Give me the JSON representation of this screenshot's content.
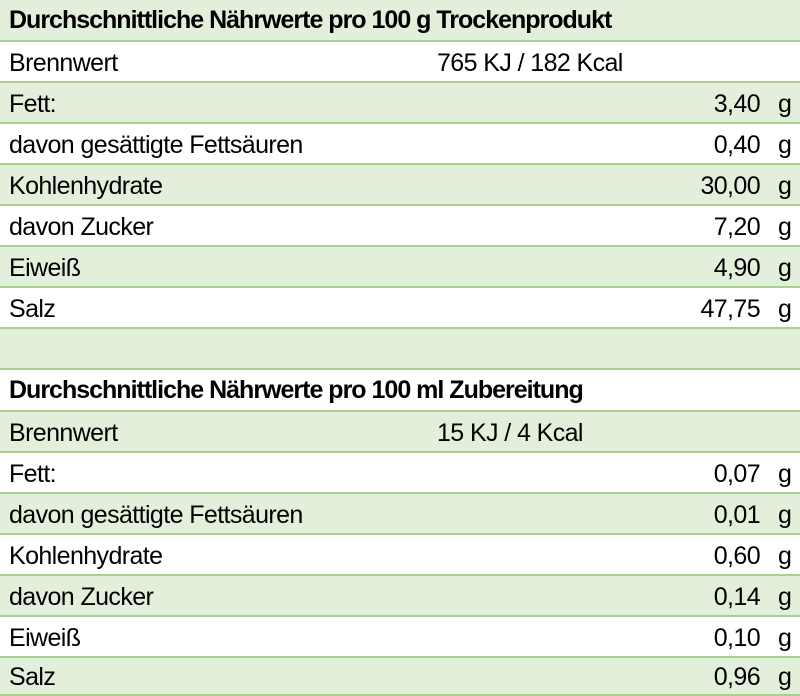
{
  "section1": {
    "title": "Durchschnittliche Nährwerte pro 100 g Trockenprodukt",
    "energy_label": "Brennwert",
    "energy_value": "765 KJ / 182 Kcal",
    "rows": [
      {
        "label": "Fett:",
        "value": "3,40",
        "unit": "g"
      },
      {
        "label": "davon gesättigte Fettsäuren",
        "value": "0,40",
        "unit": "g"
      },
      {
        "label": "Kohlenhydrate",
        "value": "30,00",
        "unit": "g"
      },
      {
        "label": "davon Zucker",
        "value": "7,20",
        "unit": "g"
      },
      {
        "label": "Eiweiß",
        "value": "4,90",
        "unit": "g"
      },
      {
        "label": "Salz",
        "value": "47,75",
        "unit": "g"
      }
    ]
  },
  "section2": {
    "title": "Durchschnittliche Nährwerte pro 100 ml Zubereitung",
    "energy_label": "Brennwert",
    "energy_value": "15 KJ / 4 Kcal",
    "rows": [
      {
        "label": "Fett:",
        "value": "0,07",
        "unit": "g"
      },
      {
        "label": "davon gesättigte Fettsäuren",
        "value": "0,01",
        "unit": "g"
      },
      {
        "label": "Kohlenhydrate",
        "value": "0,60",
        "unit": "g"
      },
      {
        "label": "davon Zucker",
        "value": "0,14",
        "unit": "g"
      },
      {
        "label": "Eiweiß",
        "value": "0,10",
        "unit": "g"
      },
      {
        "label": "Salz",
        "value": "0,96",
        "unit": "g"
      }
    ]
  },
  "colors": {
    "row_fill": "#e2efda",
    "row_border": "#a9d08e"
  }
}
